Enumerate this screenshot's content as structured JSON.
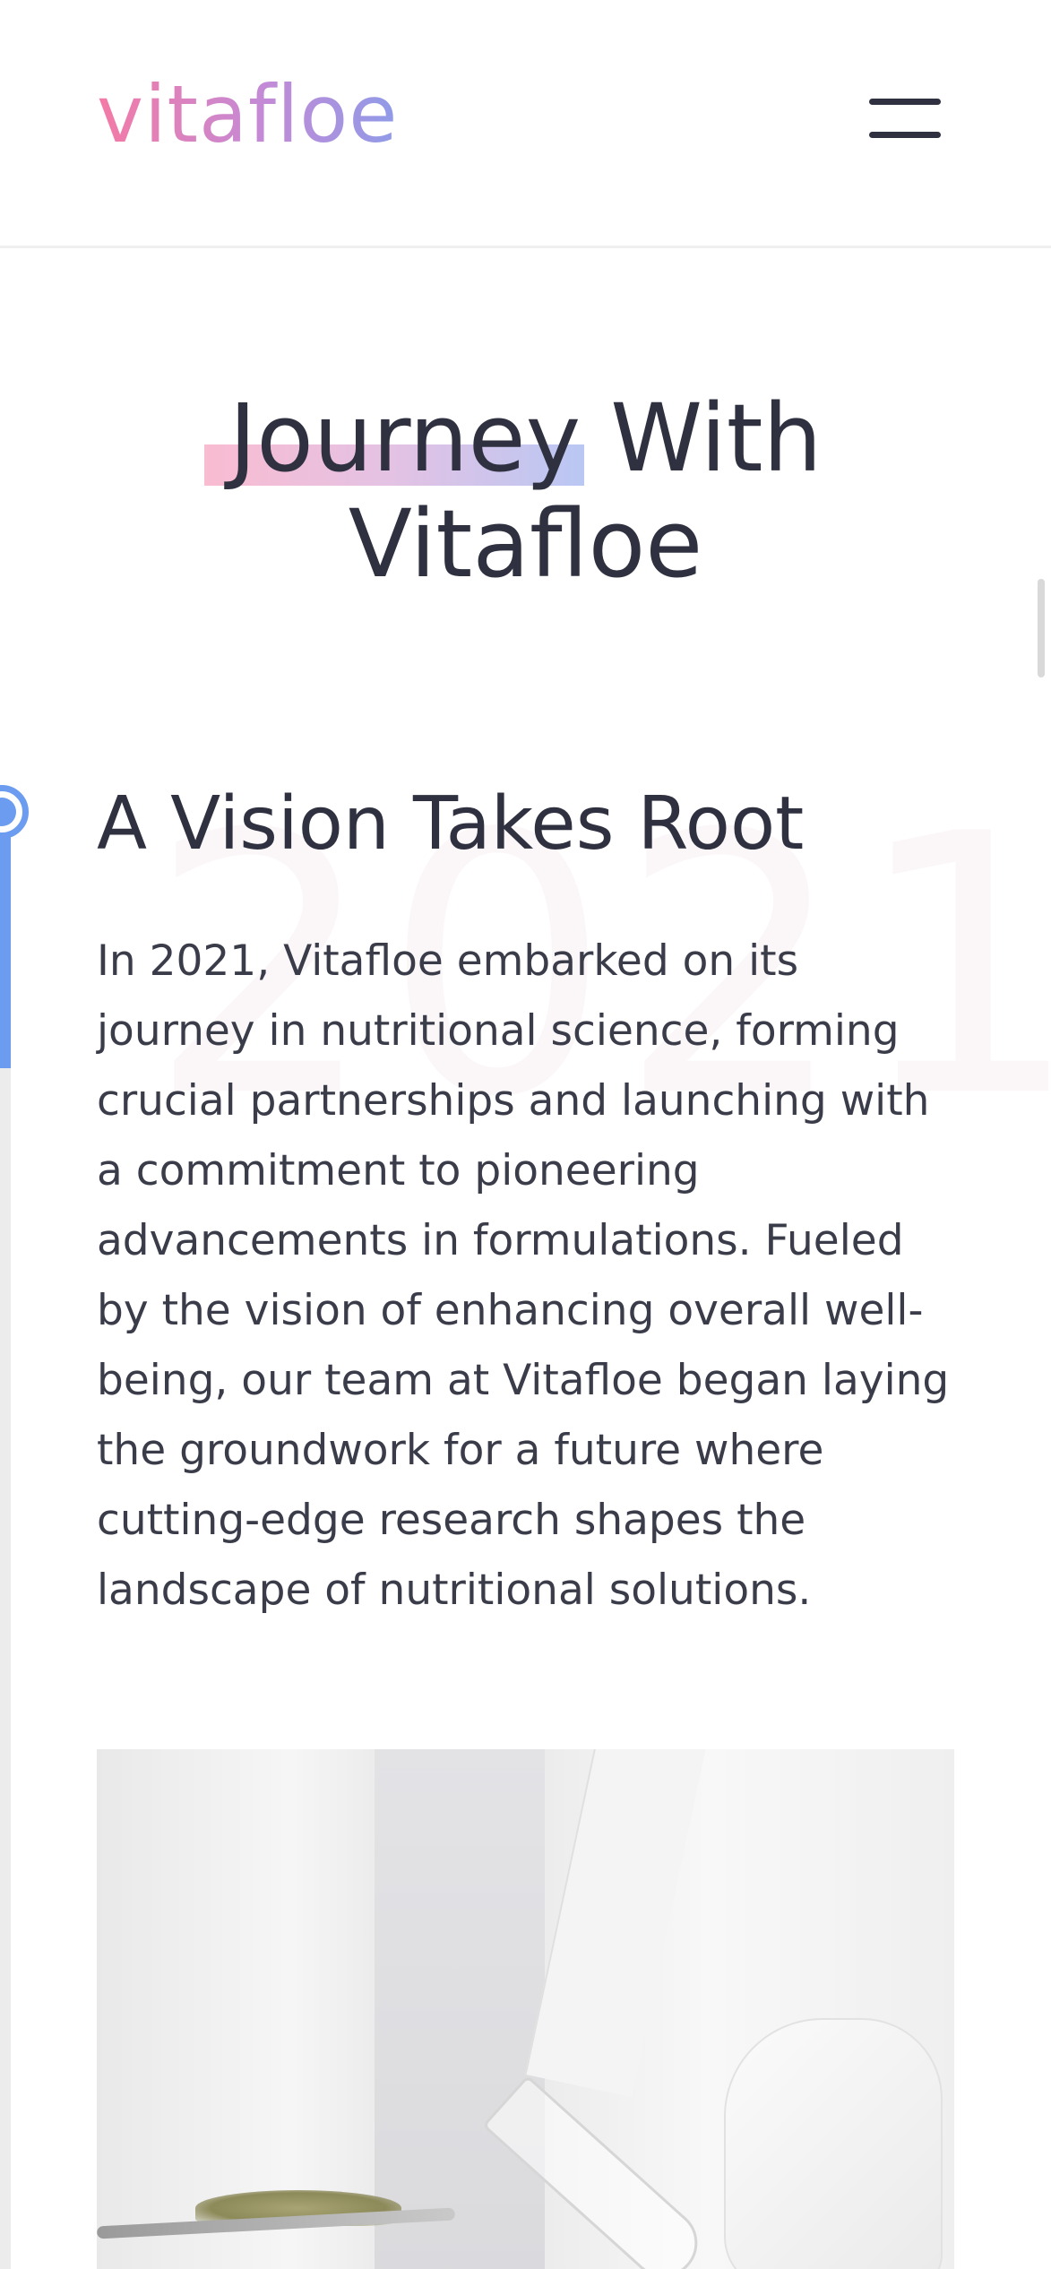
{
  "brand": {
    "logo_text": "vitafloe"
  },
  "header": {
    "menu_icon": "hamburger-menu-icon"
  },
  "section": {
    "title_highlight": "Journey",
    "title_rest_line1": " With",
    "title_line2": "Vitafloe"
  },
  "timeline": {
    "year": "2021",
    "milestone": {
      "heading": "A Vision Takes Root",
      "body": "In 2021, Vitafloe embarked on its journey in nutritional science, forming crucial partnerships and launching with a commitment to pioneering advancements in formulations. Fueled by the vision of enhancing overall well-being, our team at Vitafloe began laying the groundwork for a future where cutting-edge research shapes the landscape of nutritional solutions."
    }
  },
  "colors": {
    "accent_blue": "#6b9cf0",
    "logo_pink": "#f47aa5",
    "logo_purple": "#8f9be8",
    "text_dark": "#2f3140"
  }
}
